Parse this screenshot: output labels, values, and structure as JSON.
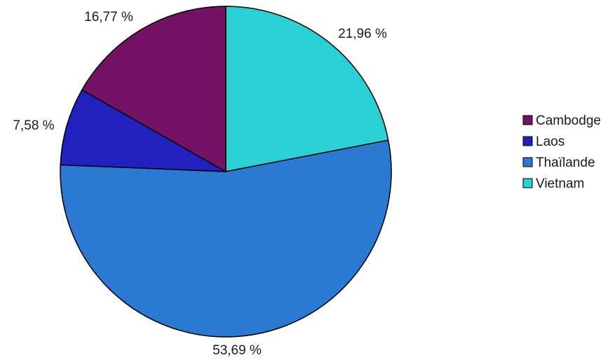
{
  "chart_data": {
    "type": "pie",
    "categories": [
      "Cambodge",
      "Laos",
      "Thaïlande",
      "Vietnam"
    ],
    "values": [
      16.77,
      7.58,
      53.69,
      21.96
    ],
    "labels": [
      "16,77 %",
      "7,58 %",
      "53,69 %",
      "21,96 %"
    ],
    "colors": [
      "#741266",
      "#2121bf",
      "#2a7ad4",
      "#2ad0d4"
    ],
    "legend_position": "right",
    "title": ""
  }
}
